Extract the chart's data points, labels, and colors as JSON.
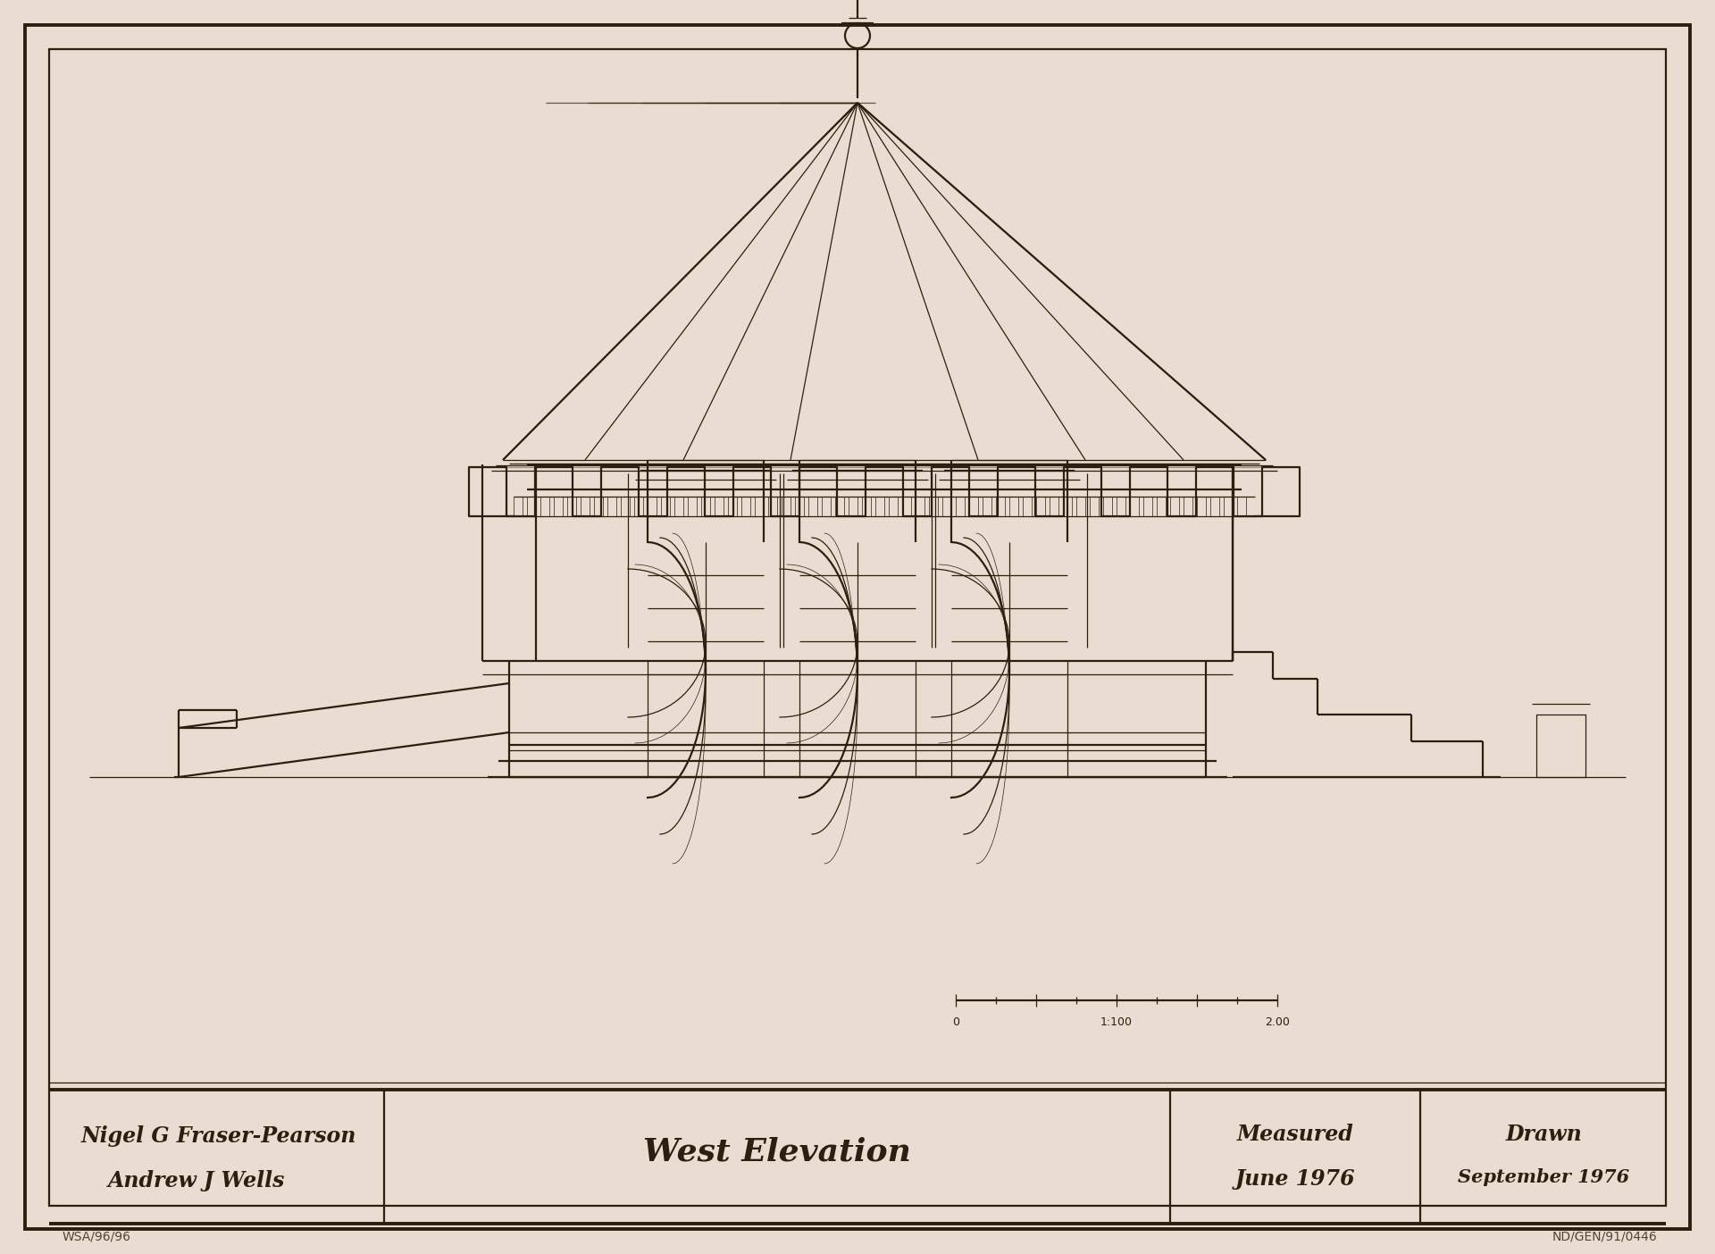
{
  "bg_color": "#e8ddd0",
  "line_color": "#2a1f10",
  "title_text": "West Elevation",
  "name1": "Nigel G Fraser-Pearson",
  "name2": "Andrew J Wells",
  "measured_label": "Measured",
  "measured_date": "June 1976",
  "drawn_label": "Drawn",
  "drawn_date": "September 1976",
  "ref_bottom_left": "WSA/96/96",
  "ref_bottom_right": "ND/GEN/91/0446"
}
